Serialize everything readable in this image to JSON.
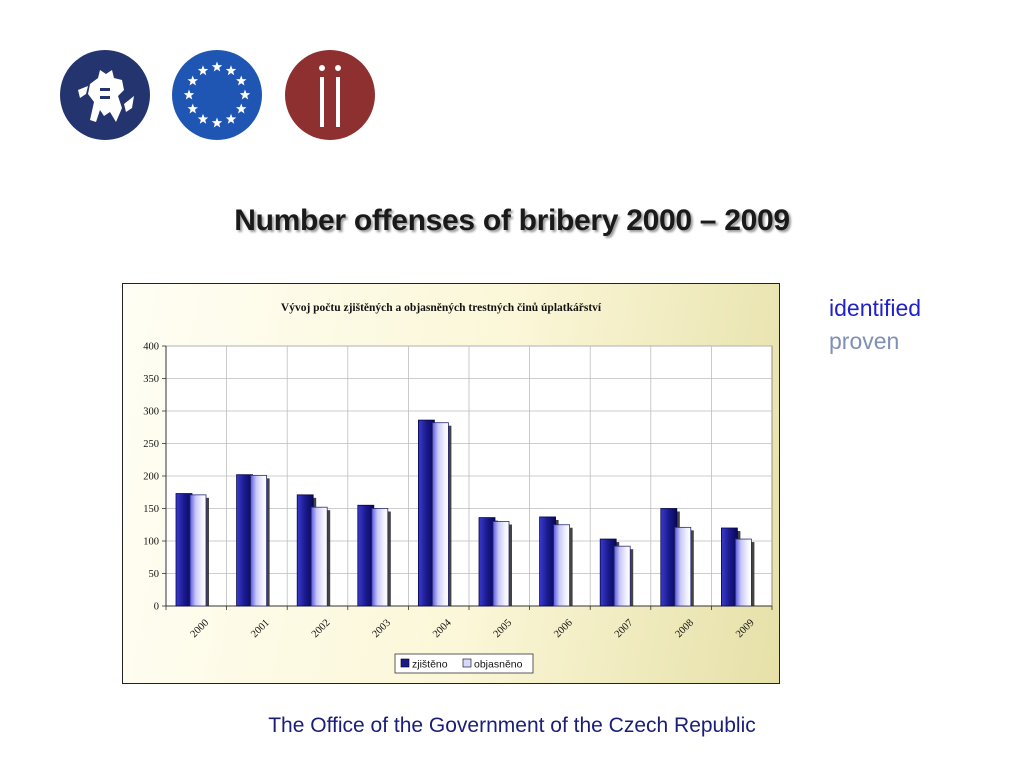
{
  "page": {
    "title": "Number offenses of bribery 2000 – 2009",
    "side_labels": {
      "identified": "identified",
      "proven": "proven"
    },
    "footer": "The Office of the Government of the Czech Republic",
    "logos": [
      "lion-emblem-icon",
      "eu-stars-icon",
      "ii-monogram-icon"
    ],
    "colors": {
      "identified_series": "#1a1a8c",
      "proven_series": "#f2f2ff",
      "footer_text": "#1a1e7a",
      "identified_label": "#2222cc",
      "proven_label": "#7f8fb5"
    }
  },
  "chart_data": {
    "type": "bar",
    "title": "Vývoj počtu  zjištěných a objasněných trestných činů  úplatkářství",
    "categories": [
      "2000",
      "2001",
      "2002",
      "2003",
      "2004",
      "2005",
      "2006",
      "2007",
      "2008",
      "2009"
    ],
    "series": [
      {
        "name": "zjištěno",
        "values": [
          173,
          202,
          171,
          155,
          286,
          136,
          137,
          103,
          150,
          120
        ]
      },
      {
        "name": "objasněno",
        "values": [
          171,
          201,
          152,
          150,
          282,
          130,
          125,
          92,
          121,
          103
        ]
      }
    ],
    "ylim": [
      0,
      400
    ],
    "yticks": [
      0,
      50,
      100,
      150,
      200,
      250,
      300,
      350,
      400
    ],
    "grid": true,
    "legend": "bottom"
  }
}
